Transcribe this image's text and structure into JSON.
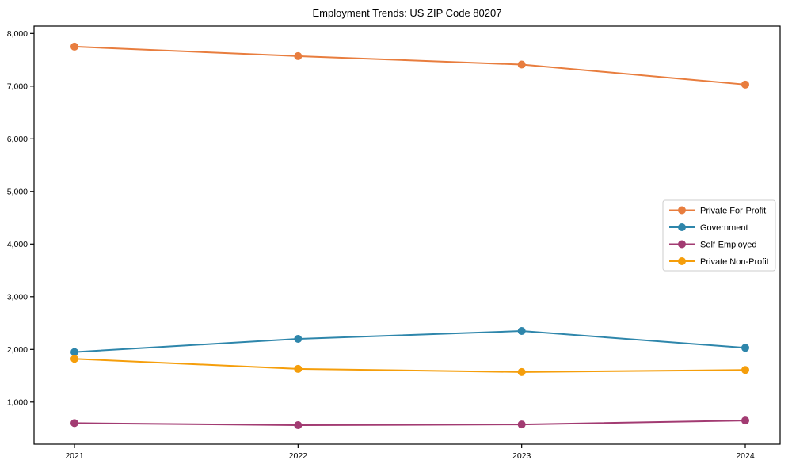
{
  "title": "Employment Trends: US ZIP Code 80207",
  "chart_data": {
    "type": "line",
    "title": "Employment Trends: US ZIP Code 80207",
    "xlabel": "",
    "ylabel": "",
    "x": [
      2021,
      2022,
      2023,
      2024
    ],
    "xtick_labels": [
      "2021",
      "2022",
      "2023",
      "2024"
    ],
    "yticks": [
      1000,
      2000,
      3000,
      4000,
      5000,
      6000,
      7000,
      8000
    ],
    "ytick_labels": [
      "1,000",
      "2,000",
      "3,000",
      "4,000",
      "5,000",
      "6,000",
      "7,000",
      "8,000"
    ],
    "ylim": [
      200,
      8140
    ],
    "grid": false,
    "legend_position": "center-right",
    "series": [
      {
        "name": "Private For-Profit",
        "color": "#E87D3E",
        "values": [
          7750,
          7570,
          7410,
          7030
        ]
      },
      {
        "name": "Government",
        "color": "#2E86AB",
        "values": [
          1950,
          2200,
          2350,
          2030
        ]
      },
      {
        "name": "Self-Employed",
        "color": "#A23B72",
        "values": [
          600,
          560,
          575,
          650
        ]
      },
      {
        "name": "Private Non-Profit",
        "color": "#F59E0B",
        "values": [
          1820,
          1630,
          1570,
          1610
        ]
      }
    ]
  }
}
